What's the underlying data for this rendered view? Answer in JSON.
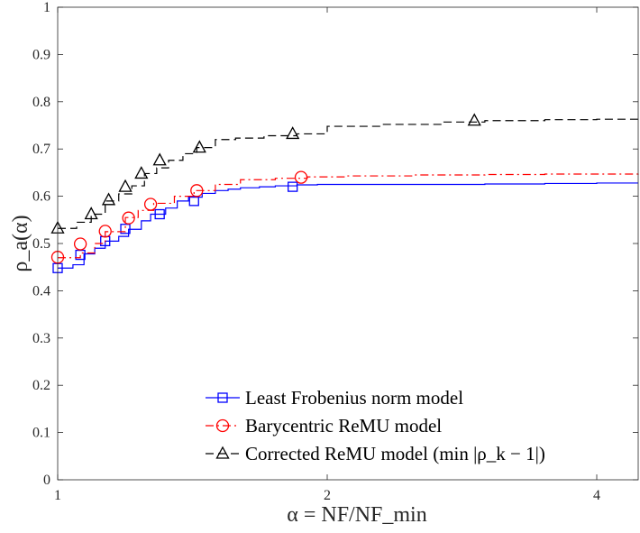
{
  "chart_data": {
    "type": "line",
    "title": "",
    "xlabel": "α = NF/NF_min",
    "ylabel": "ρ_a(α)",
    "xscale": "log2",
    "xlim": [
      1,
      4.45
    ],
    "ylim": [
      0,
      1
    ],
    "xticks": [
      1,
      2,
      4
    ],
    "xtick_labels": [
      "1",
      "2",
      "4"
    ],
    "yticks": [
      0,
      0.1,
      0.2,
      0.3,
      0.4,
      0.5,
      0.6,
      0.7,
      0.8,
      0.9,
      1
    ],
    "ytick_labels": [
      "0",
      "0.1",
      "0.2",
      "0.3",
      "0.4",
      "0.5",
      "0.6",
      "0.7",
      "0.8",
      "0.9",
      "1"
    ],
    "legend_position": "bottom-right",
    "series": [
      {
        "name": "Least Frobenius norm model",
        "color": "#0000ff",
        "line_style": "solid",
        "marker": "square",
        "x": [
          1.0,
          1.04,
          1.07,
          1.1,
          1.13,
          1.17,
          1.2,
          1.24,
          1.27,
          1.32,
          1.36,
          1.4,
          1.45,
          1.5,
          1.55,
          1.6,
          1.68,
          1.75,
          1.85,
          1.95,
          2.1,
          2.5,
          3.0,
          3.5,
          4.0,
          4.45
        ],
        "y": [
          0.448,
          0.455,
          0.478,
          0.49,
          0.505,
          0.515,
          0.53,
          0.548,
          0.562,
          0.575,
          0.59,
          0.598,
          0.606,
          0.612,
          0.615,
          0.618,
          0.62,
          0.622,
          0.624,
          0.625,
          0.625,
          0.625,
          0.626,
          0.627,
          0.628,
          0.628
        ],
        "markers_x": [
          1.0,
          1.06,
          1.13,
          1.19,
          1.3,
          1.42,
          1.83
        ],
        "markers_y": [
          0.448,
          0.476,
          0.505,
          0.531,
          0.562,
          0.59,
          0.62
        ]
      },
      {
        "name": "Barycentric ReMU model",
        "color": "#ff0000",
        "line_style": "dashdot",
        "marker": "circle",
        "x": [
          1.0,
          1.06,
          1.1,
          1.13,
          1.19,
          1.23,
          1.28,
          1.35,
          1.42,
          1.5,
          1.6,
          1.75,
          1.9,
          2.1,
          2.5,
          3.0,
          3.5,
          4.0,
          4.45
        ],
        "y": [
          0.47,
          0.48,
          0.5,
          0.525,
          0.555,
          0.57,
          0.585,
          0.6,
          0.612,
          0.625,
          0.635,
          0.638,
          0.641,
          0.643,
          0.645,
          0.646,
          0.647,
          0.647,
          0.648
        ],
        "markers_x": [
          1.0,
          1.06,
          1.13,
          1.2,
          1.27,
          1.43,
          1.87
        ],
        "markers_y": [
          0.471,
          0.499,
          0.526,
          0.554,
          0.583,
          0.612,
          0.64
        ]
      },
      {
        "name": "Corrected ReMU model (min |ρ_k − 1|)",
        "color": "#000000",
        "line_style": "dashed",
        "marker": "triangle",
        "x": [
          1.0,
          1.05,
          1.09,
          1.13,
          1.17,
          1.21,
          1.25,
          1.29,
          1.33,
          1.38,
          1.43,
          1.5,
          1.58,
          1.7,
          1.85,
          2.0,
          2.3,
          2.7,
          3.0,
          3.5,
          4.0,
          4.45
        ],
        "y": [
          0.532,
          0.545,
          0.562,
          0.59,
          0.605,
          0.622,
          0.648,
          0.66,
          0.676,
          0.69,
          0.703,
          0.72,
          0.723,
          0.728,
          0.732,
          0.748,
          0.752,
          0.757,
          0.76,
          0.762,
          0.763,
          0.763
        ],
        "markers_x": [
          1.0,
          1.09,
          1.14,
          1.19,
          1.24,
          1.3,
          1.44,
          1.83,
          2.92
        ],
        "markers_y": [
          0.532,
          0.562,
          0.592,
          0.62,
          0.648,
          0.676,
          0.703,
          0.732,
          0.76
        ]
      }
    ]
  }
}
